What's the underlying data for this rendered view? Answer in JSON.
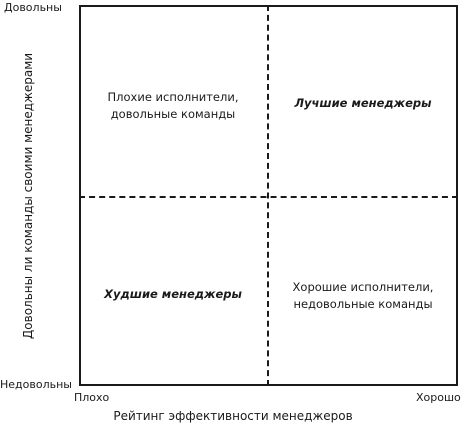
{
  "quadrants": {
    "top_left": {
      "line1": "Плохие исполнители,",
      "line2": "довольные команды"
    },
    "top_right": {
      "label": "Лучшие менеджеры"
    },
    "bottom_left": {
      "label": "Худшие менеджеры"
    },
    "bottom_right": {
      "line1": "Хорошие исполнители,",
      "line2": "недовольные команды"
    }
  },
  "y_axis": {
    "title": "Довольны ли команды своими менеджерами",
    "top_label": "Довольны",
    "bottom_label": "Недовольны"
  },
  "x_axis": {
    "title": "Рейтинг эффективности менеджеров",
    "left_label": "Плохо",
    "right_label": "Хорошо"
  }
}
